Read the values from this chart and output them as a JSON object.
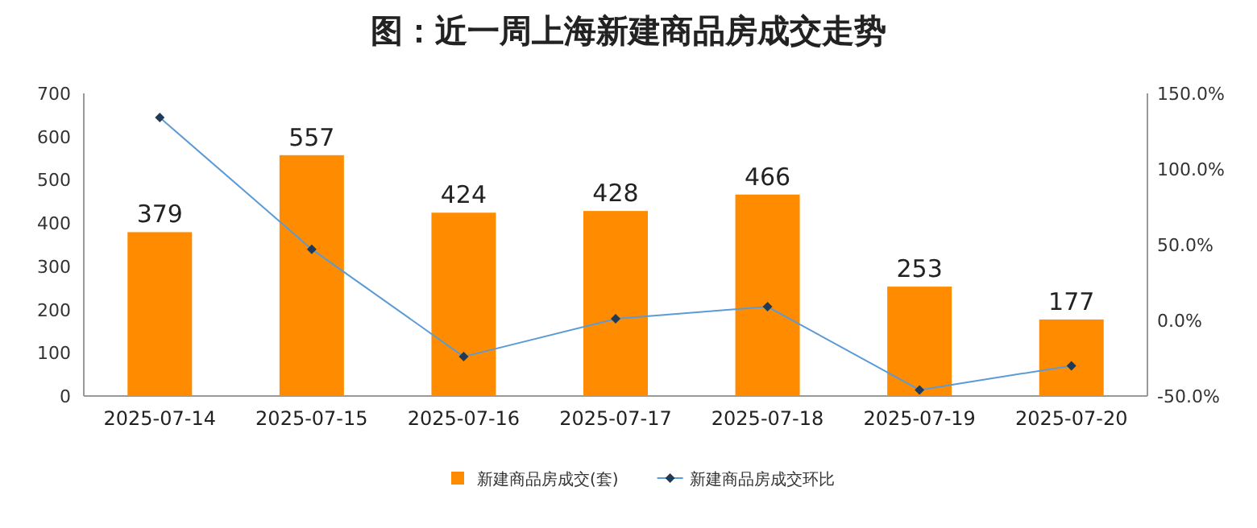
{
  "chart_data": {
    "type": "bar",
    "title": "图：近一周上海新建商品房成交走势",
    "categories": [
      "2025-07-14",
      "2025-07-15",
      "2025-07-16",
      "2025-07-17",
      "2025-07-18",
      "2025-07-19",
      "2025-07-20"
    ],
    "series": [
      {
        "name": "新建商品房成交(套)",
        "color": "#ff8c00",
        "values": [
          379,
          557,
          424,
          428,
          466,
          253,
          177
        ],
        "value_labels": [
          "379",
          "557",
          "424",
          "428",
          "466",
          "253",
          "177"
        ]
      },
      {
        "name": "新建商品房成交环比",
        "type": "line",
        "axis": "y2",
        "color": "#5b9bd5",
        "marker": "diamond",
        "values": [
          134,
          47,
          -24,
          1,
          9,
          -46,
          -30
        ]
      }
    ],
    "ylim": [
      0,
      700
    ],
    "yticks": [
      0,
      100,
      200,
      300,
      400,
      500,
      600,
      700
    ],
    "y2lim": [
      -50,
      150
    ],
    "y2ticks": [
      {
        "value": -50,
        "label": "-50.0%"
      },
      {
        "value": 0,
        "label": "0.0%"
      },
      {
        "value": 50,
        "label": "50.0%"
      },
      {
        "value": 100,
        "label": "100.0%"
      },
      {
        "value": 150,
        "label": "150.0%"
      }
    ],
    "legend": "bottom",
    "grid": false
  }
}
